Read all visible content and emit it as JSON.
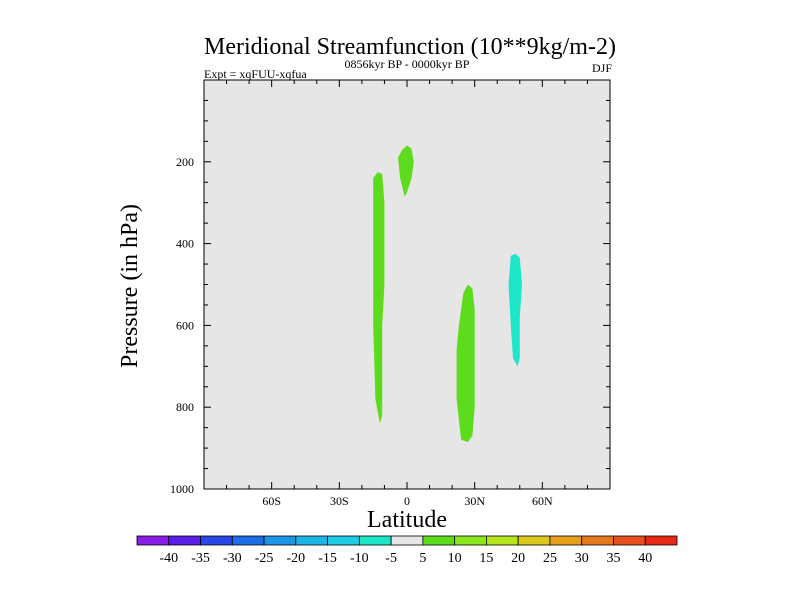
{
  "chart_data": {
    "type": "filled-contour",
    "title": "Meridional Streamfunction (10**9kg/m-2)",
    "expt_label": "Expt = xqFUU-xqfua",
    "period_label": "0856kyr BP - 0000kyr BP",
    "season": "DJF",
    "xlabel": "Latitude",
    "ylabel": "Pressure (in hPa)",
    "xlim": [
      -90,
      90
    ],
    "ylim": [
      1000,
      0
    ],
    "x_ticks": [
      {
        "value": -60,
        "label": "60S"
      },
      {
        "value": -30,
        "label": "30S"
      },
      {
        "value": 0,
        "label": "0"
      },
      {
        "value": 30,
        "label": "30N"
      },
      {
        "value": 60,
        "label": "60N"
      }
    ],
    "y_ticks": [
      {
        "value": 200,
        "label": "200"
      },
      {
        "value": 400,
        "label": "400"
      },
      {
        "value": 600,
        "label": "600"
      },
      {
        "value": 800,
        "label": "800"
      },
      {
        "value": 1000,
        "label": "1000"
      }
    ],
    "background_color": "#e6e6e6",
    "regions": [
      {
        "name": "region-polar-cap-south-of-equator",
        "band": "5 to 10",
        "color": "#5ddc1e",
        "outline": [
          [
            -2,
            170
          ],
          [
            0,
            160
          ],
          [
            2,
            168
          ],
          [
            3,
            200
          ],
          [
            2,
            240
          ],
          [
            0,
            275
          ],
          [
            -1,
            285
          ],
          [
            -3,
            240
          ],
          [
            -4,
            190
          ]
        ]
      },
      {
        "name": "region-southern-subtropics",
        "band": "5 to 10",
        "color": "#5ddc1e",
        "outline": [
          [
            -15,
            240
          ],
          [
            -13,
            225
          ],
          [
            -11,
            230
          ],
          [
            -10,
            300
          ],
          [
            -10,
            500
          ],
          [
            -11,
            600
          ],
          [
            -11,
            820
          ],
          [
            -12,
            840
          ],
          [
            -14,
            780
          ],
          [
            -15,
            600
          ],
          [
            -15,
            350
          ]
        ]
      },
      {
        "name": "region-northern-subtropics",
        "band": "5 to 10",
        "color": "#5ddc1e",
        "outline": [
          [
            25,
            520
          ],
          [
            27,
            500
          ],
          [
            29,
            510
          ],
          [
            30,
            560
          ],
          [
            30,
            800
          ],
          [
            29,
            870
          ],
          [
            27,
            885
          ],
          [
            24,
            880
          ],
          [
            22,
            780
          ],
          [
            22,
            660
          ],
          [
            23,
            600
          ]
        ]
      },
      {
        "name": "region-northern-midlatitudes",
        "band": "-10 to -5",
        "color": "#1ee6c8",
        "outline": [
          [
            46,
            430
          ],
          [
            48,
            425
          ],
          [
            50,
            435
          ],
          [
            51,
            500
          ],
          [
            50,
            580
          ],
          [
            50,
            680
          ],
          [
            49,
            700
          ],
          [
            47,
            680
          ],
          [
            46,
            600
          ],
          [
            45,
            500
          ]
        ]
      }
    ],
    "colorbar": {
      "labels": [
        "-40",
        "-35",
        "-30",
        "-25",
        "-20",
        "-15",
        "-10",
        "-5",
        "5",
        "10",
        "15",
        "20",
        "25",
        "30",
        "35",
        "40"
      ],
      "colors": [
        "#8a1ee6",
        "#5a1ee6",
        "#2a46e6",
        "#1e6ee6",
        "#1e96e6",
        "#1eb4e6",
        "#1ecce6",
        "#1ee6c8",
        "#e6e6e6",
        "#5ddc1e",
        "#8ce61e",
        "#b4e61e",
        "#dcc81e",
        "#e6a01e",
        "#e6781e",
        "#e6501e",
        "#e62814"
      ]
    }
  }
}
